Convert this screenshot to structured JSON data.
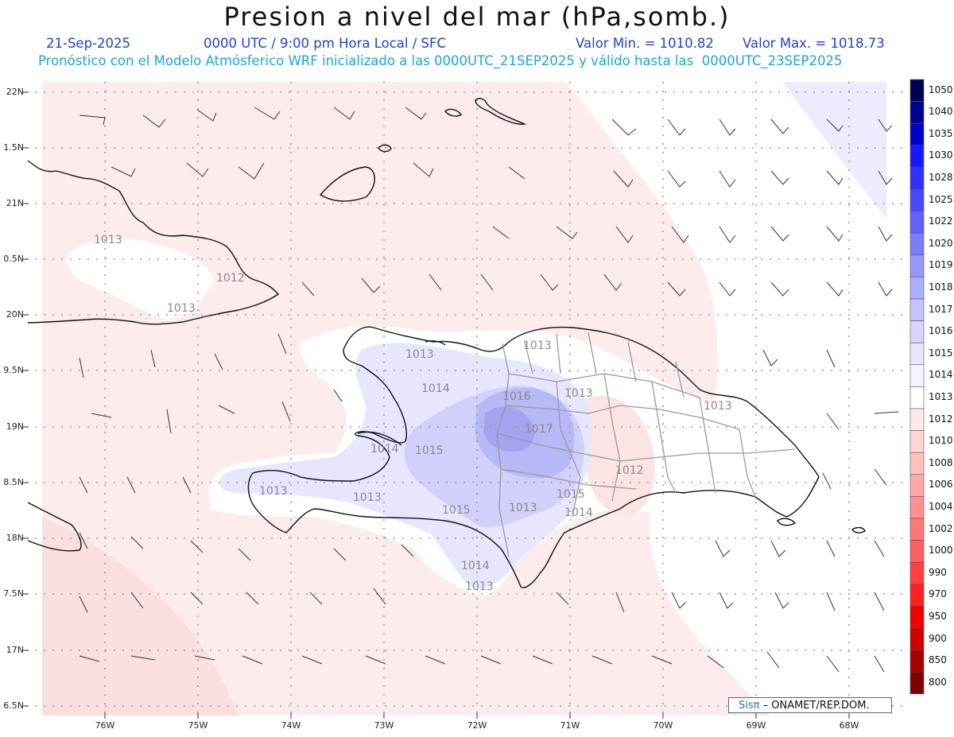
{
  "title": "Presion a nivel del mar (hPa,somb.)",
  "date": "21-Sep-2025",
  "time_line": "0000 UTC / 9:00 pm Hora Local / SFC",
  "min_value": "Valor Min. = 1010.82",
  "max_value": "Valor Max. = 1018.73",
  "forecast_line": "Pronóstico con el Modelo Atmósferico WRF inicializado a las 0000UTC_21SEP2025 y válido hasta las  0000UTC_23SEP2025",
  "lat_labels": [
    "22N",
    "1.5N",
    "21N",
    "0.5N",
    "20N",
    "9.5N",
    "19N",
    "8.5N",
    "18N",
    "7.5N",
    "17N",
    "6.5N"
  ],
  "lon_labels": [
    "76W",
    "75W",
    "74W",
    "73W",
    "72W",
    "71W",
    "70W",
    "69W",
    "68W"
  ],
  "contour_labels": [
    "1013",
    "1012",
    "1013",
    "1013",
    "1014",
    "1016",
    "1017",
    "1013",
    "1013",
    "1014",
    "1015",
    "1012",
    "1013",
    "1013",
    "1015",
    "1013",
    "1015",
    "1014",
    "1013",
    "1014",
    "1013"
  ],
  "legend": {
    "levels": [
      "1050",
      "1040",
      "1035",
      "1030",
      "1028",
      "1025",
      "1022",
      "1020",
      "1019",
      "1018",
      "1017",
      "1016",
      "1015",
      "1014",
      "1013",
      "1012",
      "1010",
      "1008",
      "1006",
      "1004",
      "1002",
      "1000",
      "990",
      "970",
      "950",
      "900",
      "850",
      "800"
    ],
    "colors": [
      "#000050",
      "#000090",
      "#0000c8",
      "#1818ff",
      "#3030ff",
      "#4848ff",
      "#6262ff",
      "#7c7cff",
      "#9696ff",
      "#aeaeff",
      "#c4c4ff",
      "#d6d6ff",
      "#e6e6ff",
      "#f4f4ff",
      "#ffffff",
      "#ffeaea",
      "#ffd6d6",
      "#ffc0c0",
      "#ffa8a8",
      "#ff9090",
      "#ff7878",
      "#ff6060",
      "#ff4040",
      "#ff2020",
      "#f00000",
      "#d00000",
      "#a80000",
      "#800000"
    ]
  },
  "credit": {
    "brand": "Sisπ",
    "text": "– ONAMET/REP.DOM."
  }
}
